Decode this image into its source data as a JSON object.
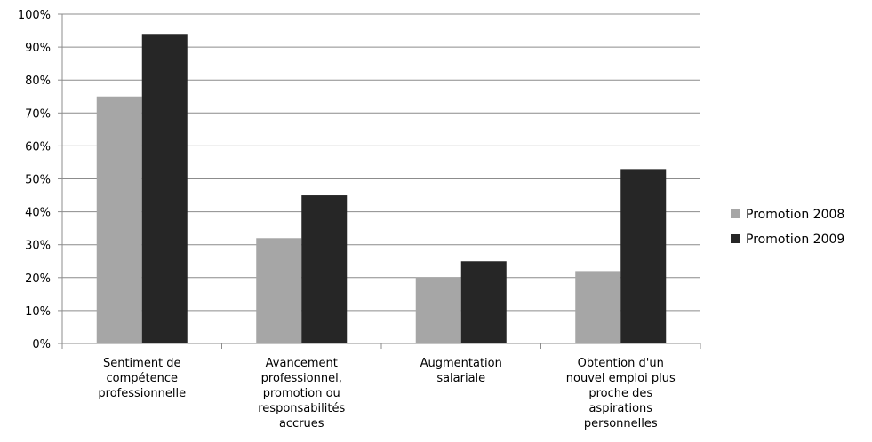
{
  "chart_data": {
    "type": "bar",
    "title": "",
    "xlabel": "",
    "ylabel": "",
    "ylim": [
      0,
      100
    ],
    "y_ticks": [
      "0%",
      "10%",
      "20%",
      "30%",
      "40%",
      "50%",
      "60%",
      "70%",
      "80%",
      "90%",
      "100%"
    ],
    "grid": true,
    "legend_position": "right",
    "categories": [
      [
        "Sentiment de",
        "compétence",
        "professionnelle"
      ],
      [
        "Avancement",
        "professionnel,",
        "promotion ou",
        "responsabilités",
        "accrues"
      ],
      [
        "Augmentation",
        "salariale"
      ],
      [
        "Obtention d'un",
        "nouvel emploi plus",
        "proche des",
        "aspirations",
        "personnelles"
      ]
    ],
    "series": [
      {
        "name": "Promotion 2008",
        "color": "#a6a6a6",
        "values": [
          75,
          32,
          20,
          22
        ]
      },
      {
        "name": "Promotion 2009",
        "color": "#262626",
        "values": [
          94,
          45,
          25,
          53
        ]
      }
    ]
  }
}
